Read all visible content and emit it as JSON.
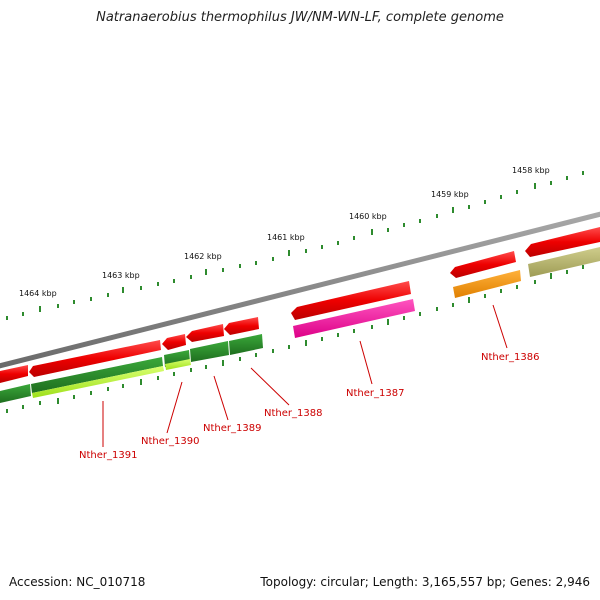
{
  "title": "Natranaerobius thermophilus JW/NM-WN-LF, complete genome",
  "footer": {
    "accession": "Accession: NC_010718",
    "summary": "Topology: circular; Length: 3,165,557 bp; Genes: 2,946"
  },
  "map": {
    "kbp_labels": [
      "1464 kbp",
      "1463 kbp",
      "1462 kbp",
      "1461 kbp",
      "1460 kbp",
      "1459 kbp",
      "1458 kbp"
    ],
    "gene_labels": [
      "Nther_1391",
      "Nther_1390",
      "Nther_1389",
      "Nther_1388",
      "Nther_1387",
      "Nther_1386"
    ]
  },
  "colors": {
    "backbone": "#808080",
    "forward_gene": "#ff0000",
    "tick": "#2e8b2e",
    "label": "#cc0000",
    "cds_green": "#2e8b2e",
    "cds_lime": "#b8ff3a",
    "cds_magenta": "#ff1aa3",
    "cds_orange": "#ff9900",
    "cds_olive": "#b5b36a"
  }
}
